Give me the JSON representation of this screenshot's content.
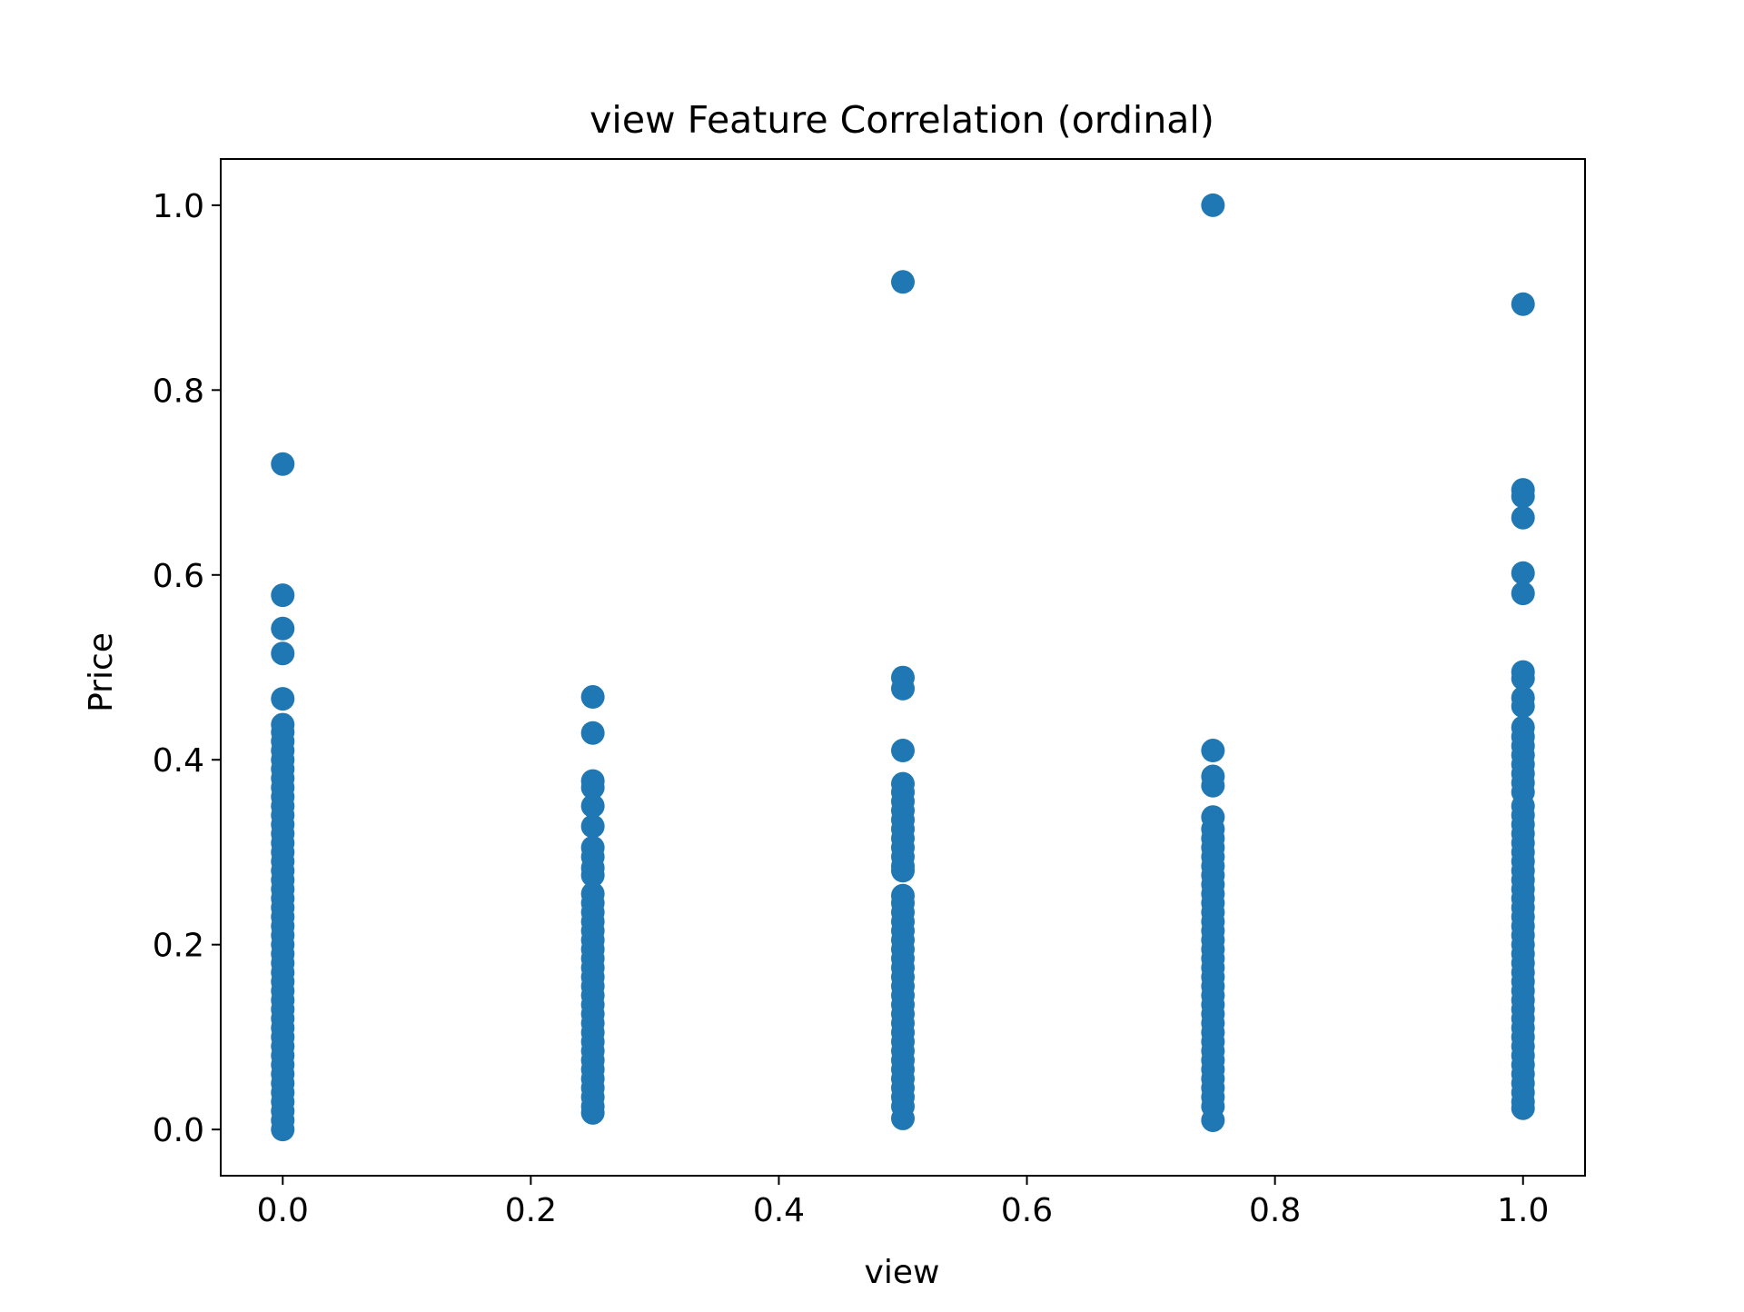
{
  "chart_data": {
    "type": "scatter",
    "title": "view Feature Correlation (ordinal)",
    "xlabel": "view",
    "ylabel": "Price",
    "xlim": [
      -0.05,
      1.05
    ],
    "ylim": [
      -0.05,
      1.05
    ],
    "xticks": [
      0.0,
      0.2,
      0.4,
      0.6,
      0.8,
      1.0
    ],
    "xtick_labels": [
      "0.0",
      "0.2",
      "0.4",
      "0.6",
      "0.8",
      "1.0"
    ],
    "yticks": [
      0.0,
      0.2,
      0.4,
      0.6,
      0.8,
      1.0
    ],
    "ytick_labels": [
      "0.0",
      "0.2",
      "0.4",
      "0.6",
      "0.8",
      "1.0"
    ],
    "grid": false,
    "marker_color": "#1f77b4",
    "series": [
      {
        "points": [
          [
            0.0,
            0.72
          ],
          [
            0.0,
            0.578
          ],
          [
            0.0,
            0.542
          ],
          [
            0.0,
            0.515
          ],
          [
            0.0,
            0.466
          ],
          [
            0.0,
            0.438
          ],
          [
            0.0,
            0.43
          ],
          [
            0.0,
            0.42
          ],
          [
            0.0,
            0.41
          ],
          [
            0.0,
            0.4
          ],
          [
            0.0,
            0.39
          ],
          [
            0.0,
            0.38
          ],
          [
            0.0,
            0.37
          ],
          [
            0.0,
            0.36
          ],
          [
            0.0,
            0.35
          ],
          [
            0.0,
            0.34
          ],
          [
            0.0,
            0.33
          ],
          [
            0.0,
            0.32
          ],
          [
            0.0,
            0.31
          ],
          [
            0.0,
            0.3
          ],
          [
            0.0,
            0.29
          ],
          [
            0.0,
            0.28
          ],
          [
            0.0,
            0.27
          ],
          [
            0.0,
            0.26
          ],
          [
            0.0,
            0.25
          ],
          [
            0.0,
            0.24
          ],
          [
            0.0,
            0.23
          ],
          [
            0.0,
            0.22
          ],
          [
            0.0,
            0.21
          ],
          [
            0.0,
            0.2
          ],
          [
            0.0,
            0.19
          ],
          [
            0.0,
            0.18
          ],
          [
            0.0,
            0.17
          ],
          [
            0.0,
            0.16
          ],
          [
            0.0,
            0.15
          ],
          [
            0.0,
            0.14
          ],
          [
            0.0,
            0.13
          ],
          [
            0.0,
            0.12
          ],
          [
            0.0,
            0.11
          ],
          [
            0.0,
            0.1
          ],
          [
            0.0,
            0.09
          ],
          [
            0.0,
            0.08
          ],
          [
            0.0,
            0.07
          ],
          [
            0.0,
            0.06
          ],
          [
            0.0,
            0.05
          ],
          [
            0.0,
            0.04
          ],
          [
            0.0,
            0.03
          ],
          [
            0.0,
            0.02
          ],
          [
            0.0,
            0.01
          ],
          [
            0.0,
            0.0
          ],
          [
            0.25,
            0.468
          ],
          [
            0.25,
            0.429
          ],
          [
            0.25,
            0.377
          ],
          [
            0.25,
            0.37
          ],
          [
            0.25,
            0.35
          ],
          [
            0.25,
            0.328
          ],
          [
            0.25,
            0.305
          ],
          [
            0.25,
            0.295
          ],
          [
            0.25,
            0.283
          ],
          [
            0.25,
            0.275
          ],
          [
            0.25,
            0.255
          ],
          [
            0.25,
            0.245
          ],
          [
            0.25,
            0.235
          ],
          [
            0.25,
            0.225
          ],
          [
            0.25,
            0.215
          ],
          [
            0.25,
            0.205
          ],
          [
            0.25,
            0.195
          ],
          [
            0.25,
            0.185
          ],
          [
            0.25,
            0.175
          ],
          [
            0.25,
            0.165
          ],
          [
            0.25,
            0.155
          ],
          [
            0.25,
            0.145
          ],
          [
            0.25,
            0.135
          ],
          [
            0.25,
            0.125
          ],
          [
            0.25,
            0.115
          ],
          [
            0.25,
            0.105
          ],
          [
            0.25,
            0.095
          ],
          [
            0.25,
            0.085
          ],
          [
            0.25,
            0.075
          ],
          [
            0.25,
            0.065
          ],
          [
            0.25,
            0.055
          ],
          [
            0.25,
            0.045
          ],
          [
            0.25,
            0.035
          ],
          [
            0.25,
            0.025
          ],
          [
            0.25,
            0.018
          ],
          [
            0.5,
            0.917
          ],
          [
            0.5,
            0.489
          ],
          [
            0.5,
            0.477
          ],
          [
            0.5,
            0.41
          ],
          [
            0.5,
            0.374
          ],
          [
            0.5,
            0.365
          ],
          [
            0.5,
            0.355
          ],
          [
            0.5,
            0.345
          ],
          [
            0.5,
            0.335
          ],
          [
            0.5,
            0.325
          ],
          [
            0.5,
            0.315
          ],
          [
            0.5,
            0.305
          ],
          [
            0.5,
            0.295
          ],
          [
            0.5,
            0.285
          ],
          [
            0.5,
            0.28
          ],
          [
            0.5,
            0.253
          ],
          [
            0.5,
            0.245
          ],
          [
            0.5,
            0.235
          ],
          [
            0.5,
            0.225
          ],
          [
            0.5,
            0.215
          ],
          [
            0.5,
            0.205
          ],
          [
            0.5,
            0.195
          ],
          [
            0.5,
            0.185
          ],
          [
            0.5,
            0.175
          ],
          [
            0.5,
            0.165
          ],
          [
            0.5,
            0.155
          ],
          [
            0.5,
            0.145
          ],
          [
            0.5,
            0.135
          ],
          [
            0.5,
            0.125
          ],
          [
            0.5,
            0.115
          ],
          [
            0.5,
            0.105
          ],
          [
            0.5,
            0.095
          ],
          [
            0.5,
            0.085
          ],
          [
            0.5,
            0.075
          ],
          [
            0.5,
            0.065
          ],
          [
            0.5,
            0.055
          ],
          [
            0.5,
            0.045
          ],
          [
            0.5,
            0.035
          ],
          [
            0.5,
            0.025
          ],
          [
            0.5,
            0.012
          ],
          [
            0.75,
            1.0
          ],
          [
            0.75,
            0.41
          ],
          [
            0.75,
            0.382
          ],
          [
            0.75,
            0.372
          ],
          [
            0.75,
            0.338
          ],
          [
            0.75,
            0.325
          ],
          [
            0.75,
            0.315
          ],
          [
            0.75,
            0.305
          ],
          [
            0.75,
            0.295
          ],
          [
            0.75,
            0.285
          ],
          [
            0.75,
            0.275
          ],
          [
            0.75,
            0.265
          ],
          [
            0.75,
            0.255
          ],
          [
            0.75,
            0.245
          ],
          [
            0.75,
            0.235
          ],
          [
            0.75,
            0.225
          ],
          [
            0.75,
            0.215
          ],
          [
            0.75,
            0.205
          ],
          [
            0.75,
            0.195
          ],
          [
            0.75,
            0.185
          ],
          [
            0.75,
            0.175
          ],
          [
            0.75,
            0.165
          ],
          [
            0.75,
            0.155
          ],
          [
            0.75,
            0.145
          ],
          [
            0.75,
            0.135
          ],
          [
            0.75,
            0.125
          ],
          [
            0.75,
            0.115
          ],
          [
            0.75,
            0.105
          ],
          [
            0.75,
            0.095
          ],
          [
            0.75,
            0.085
          ],
          [
            0.75,
            0.075
          ],
          [
            0.75,
            0.065
          ],
          [
            0.75,
            0.055
          ],
          [
            0.75,
            0.045
          ],
          [
            0.75,
            0.035
          ],
          [
            0.75,
            0.025
          ],
          [
            0.75,
            0.01
          ],
          [
            1.0,
            0.893
          ],
          [
            1.0,
            0.692
          ],
          [
            1.0,
            0.685
          ],
          [
            1.0,
            0.662
          ],
          [
            1.0,
            0.602
          ],
          [
            1.0,
            0.58
          ],
          [
            1.0,
            0.495
          ],
          [
            1.0,
            0.488
          ],
          [
            1.0,
            0.467
          ],
          [
            1.0,
            0.458
          ],
          [
            1.0,
            0.435
          ],
          [
            1.0,
            0.425
          ],
          [
            1.0,
            0.415
          ],
          [
            1.0,
            0.405
          ],
          [
            1.0,
            0.395
          ],
          [
            1.0,
            0.385
          ],
          [
            1.0,
            0.375
          ],
          [
            1.0,
            0.365
          ],
          [
            1.0,
            0.35
          ],
          [
            1.0,
            0.34
          ],
          [
            1.0,
            0.33
          ],
          [
            1.0,
            0.32
          ],
          [
            1.0,
            0.31
          ],
          [
            1.0,
            0.3
          ],
          [
            1.0,
            0.29
          ],
          [
            1.0,
            0.28
          ],
          [
            1.0,
            0.27
          ],
          [
            1.0,
            0.26
          ],
          [
            1.0,
            0.25
          ],
          [
            1.0,
            0.24
          ],
          [
            1.0,
            0.23
          ],
          [
            1.0,
            0.22
          ],
          [
            1.0,
            0.21
          ],
          [
            1.0,
            0.2
          ],
          [
            1.0,
            0.19
          ],
          [
            1.0,
            0.18
          ],
          [
            1.0,
            0.17
          ],
          [
            1.0,
            0.16
          ],
          [
            1.0,
            0.15
          ],
          [
            1.0,
            0.14
          ],
          [
            1.0,
            0.13
          ],
          [
            1.0,
            0.12
          ],
          [
            1.0,
            0.11
          ],
          [
            1.0,
            0.1
          ],
          [
            1.0,
            0.09
          ],
          [
            1.0,
            0.08
          ],
          [
            1.0,
            0.07
          ],
          [
            1.0,
            0.06
          ],
          [
            1.0,
            0.05
          ],
          [
            1.0,
            0.04
          ],
          [
            1.0,
            0.03
          ],
          [
            1.0,
            0.023
          ]
        ]
      }
    ]
  }
}
